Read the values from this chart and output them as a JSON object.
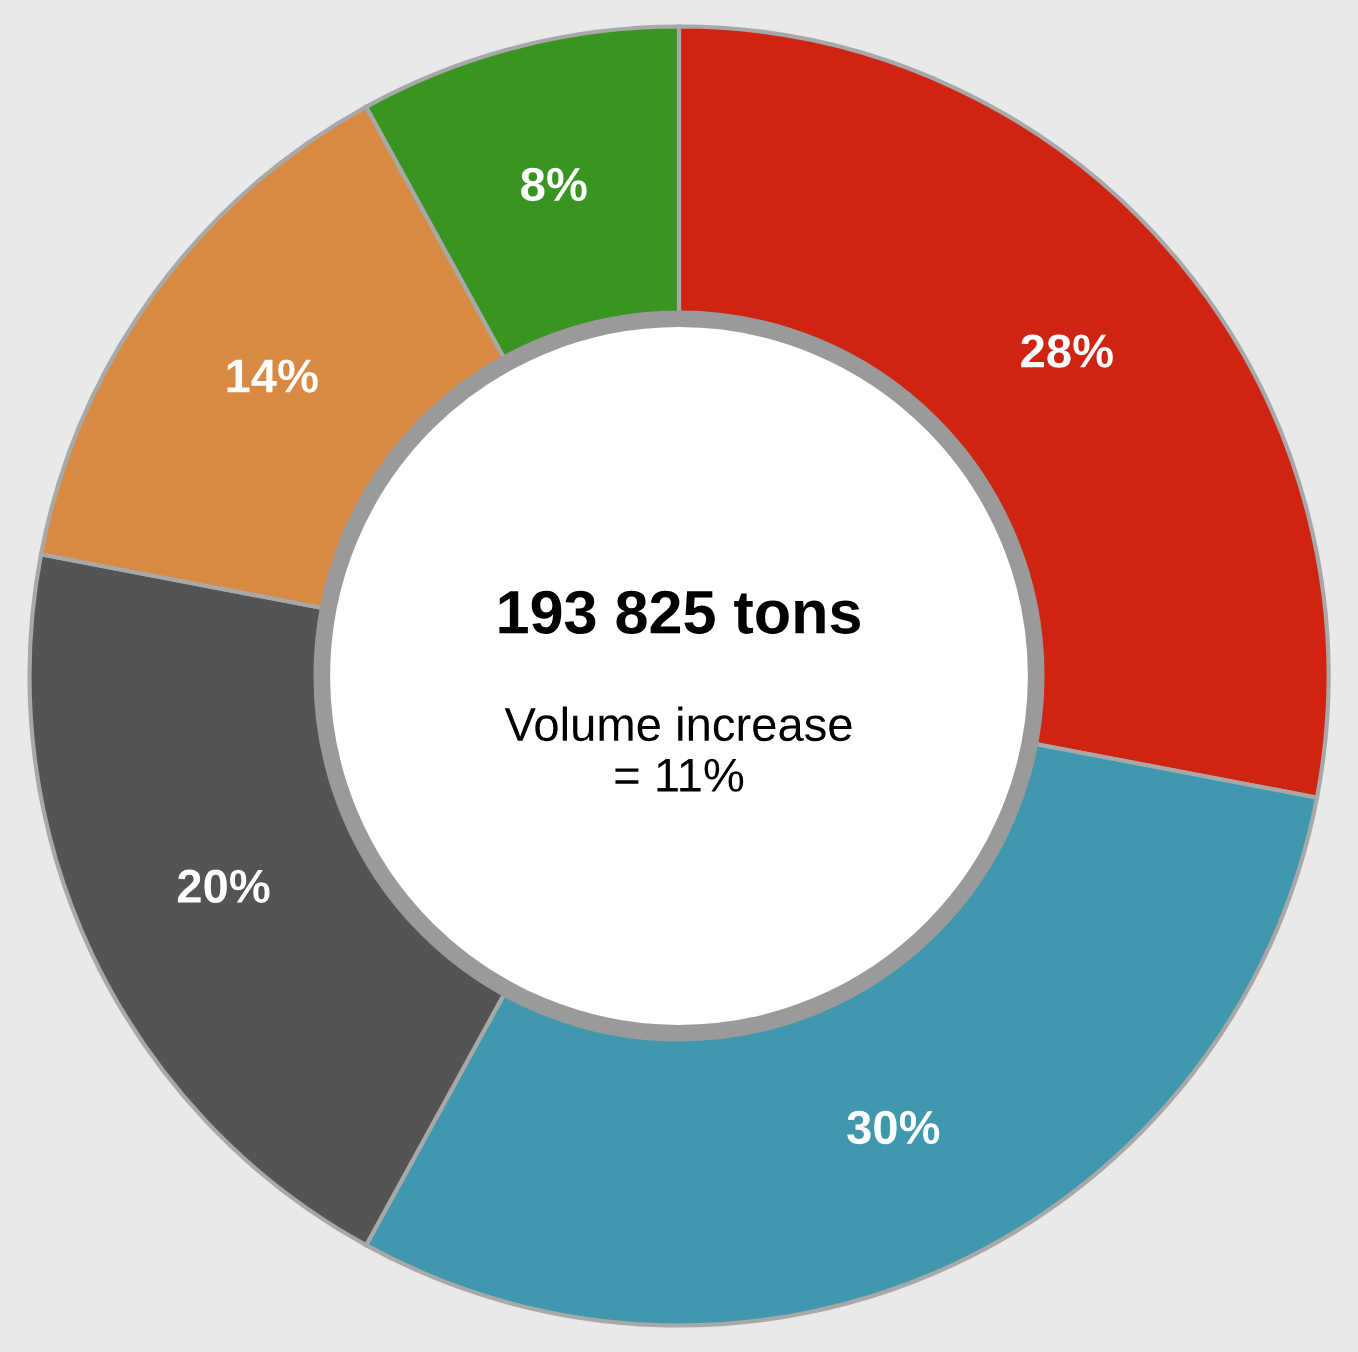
{
  "chart_data": {
    "type": "donut",
    "title": "193 825 tons",
    "annotations": [
      "Volume increase\n= 11%"
    ],
    "categories": [
      null,
      null,
      null,
      null,
      null
    ],
    "values": [
      28,
      30,
      20,
      14,
      8
    ],
    "value_labels": [
      "28%",
      "30%",
      "20%",
      "14%",
      "8%"
    ],
    "colors": [
      "#d02412",
      "#4098ae",
      "#535456",
      "#d98a42",
      "#3a9422"
    ],
    "legend": false
  }
}
